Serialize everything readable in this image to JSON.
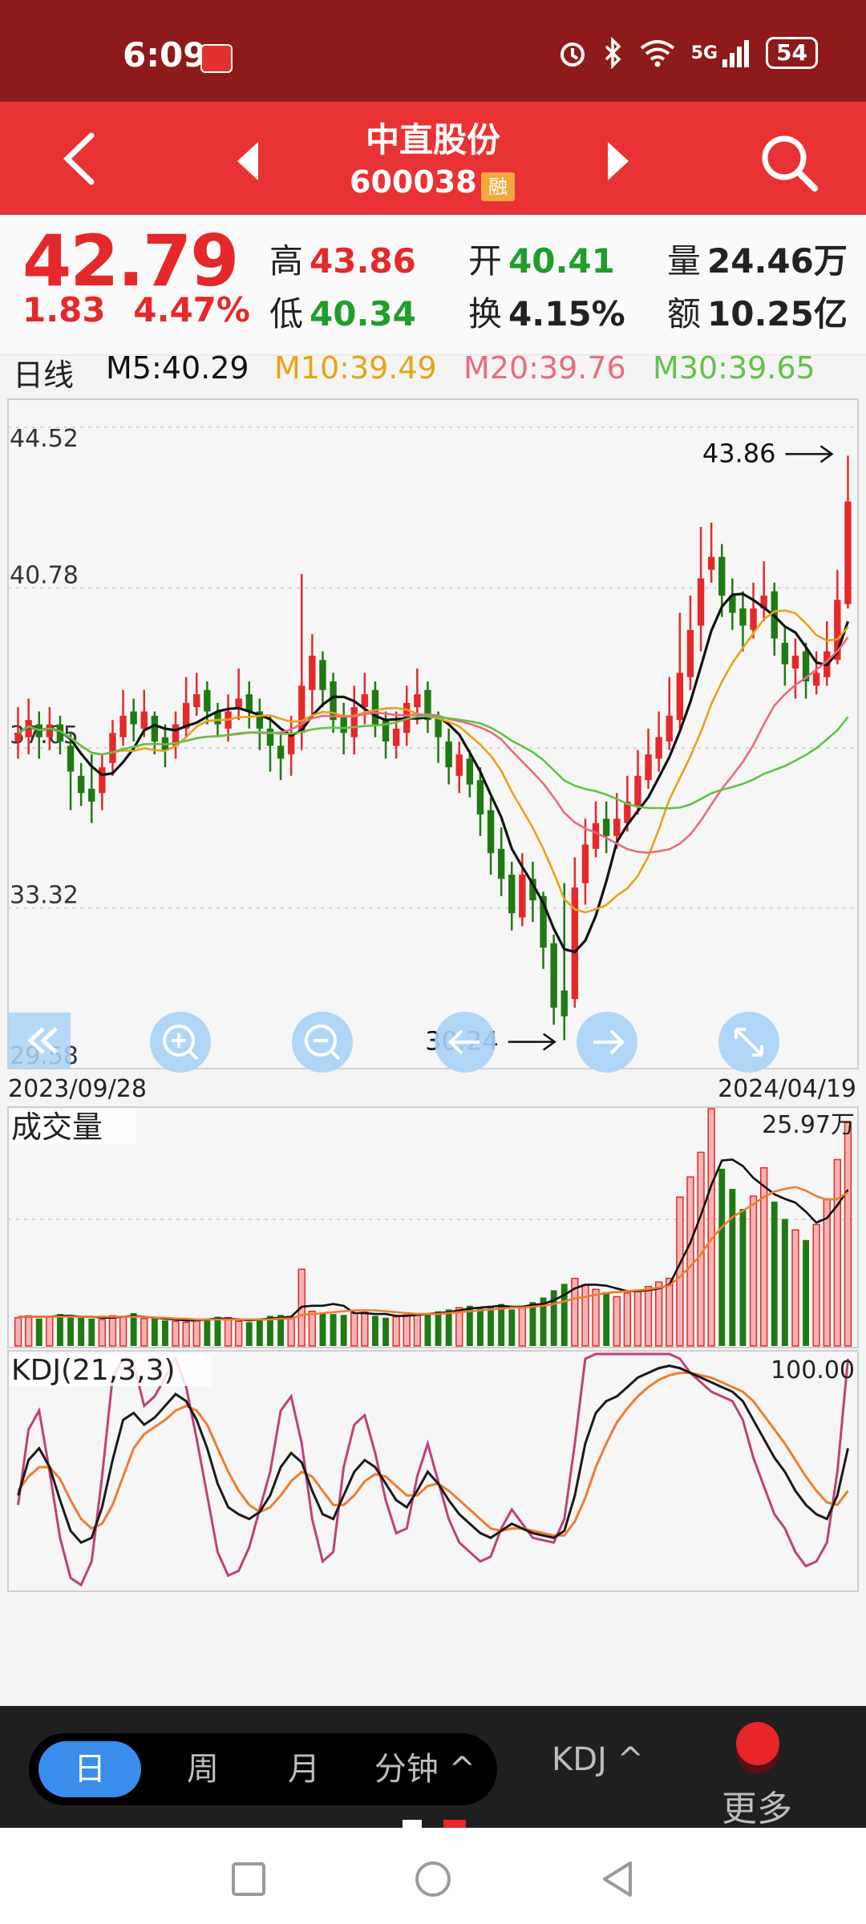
{
  "status_bar": {
    "time": "6:09",
    "battery": "54",
    "network": "5G"
  },
  "header": {
    "stock_name": "中直股份",
    "stock_code": "600038",
    "badge": "融"
  },
  "quote": {
    "price": "42.79",
    "change": "1.83",
    "change_pct": "4.47%",
    "high_label": "高",
    "high": "43.86",
    "low_label": "低",
    "low": "40.34",
    "open_label": "开",
    "open": "40.41",
    "turnover_label": "换",
    "turnover": "4.15%",
    "volume_label": "量",
    "volume": "24.46万",
    "amount_label": "额",
    "amount": "10.25亿"
  },
  "ma_bar": {
    "period": "日线",
    "ma5": "M5:40.29",
    "ma10": "M10:39.49",
    "ma20": "M20:39.76",
    "ma30": "M30:39.65"
  },
  "colors": {
    "up": "#e5292a",
    "down": "#1f7a12",
    "ma5": "#111111",
    "ma10": "#e8a317",
    "ma20": "#ec6a7e",
    "ma30": "#62c24a",
    "k": "#1a1a1a",
    "d": "#ef7d2e",
    "j": "#c0407a",
    "accent_blue": "#3a8dea"
  },
  "chart_data": [
    {
      "type": "candlestick",
      "y_ticks": [
        "44.52",
        "40.78",
        "37.05",
        "33.32",
        "29.58"
      ],
      "ylim": [
        29.58,
        44.52
      ],
      "date_start": "2023/09/28",
      "date_end": "2024/04/19",
      "max_label": "43.86",
      "min_label": "30.24",
      "close": [
        37.4,
        37.7,
        37.3,
        37.6,
        37.2,
        36.5,
        36.0,
        35.8,
        36.6,
        37.4,
        37.8,
        37.6,
        37.9,
        37.2,
        37.0,
        37.6,
        38.1,
        38.3,
        37.9,
        37.6,
        37.9,
        38.2,
        37.9,
        37.5,
        37.1,
        36.8,
        37.4,
        38.5,
        39.2,
        38.4,
        37.7,
        37.4,
        38.0,
        38.3,
        37.6,
        37.2,
        37.5,
        38.1,
        38.3,
        37.7,
        37.3,
        36.6,
        36.9,
        36.2,
        35.5,
        34.6,
        34.0,
        33.2,
        34.1,
        33.5,
        32.4,
        31.0,
        30.8,
        33.8,
        34.8,
        35.3,
        35.0,
        35.4,
        35.8,
        36.4,
        36.9,
        37.3,
        37.8,
        38.8,
        39.8,
        41.0,
        41.5,
        40.6,
        40.2,
        39.9,
        40.3,
        40.6,
        39.6,
        39.0,
        39.2,
        38.6,
        38.8,
        39.3,
        40.5,
        42.79
      ],
      "open": [
        37.2,
        37.3,
        37.6,
        37.3,
        37.6,
        37.1,
        36.4,
        36.1,
        36.0,
        36.7,
        37.3,
        37.9,
        37.5,
        37.8,
        37.3,
        37.1,
        37.5,
        38.0,
        38.4,
        37.9,
        37.5,
        38.0,
        38.3,
        37.9,
        37.5,
        37.1,
        36.9,
        37.4,
        38.4,
        39.1,
        38.6,
        37.8,
        37.3,
        38.0,
        38.4,
        37.7,
        37.1,
        37.4,
        38.0,
        38.4,
        37.8,
        37.2,
        36.4,
        36.8,
        36.3,
        35.6,
        34.7,
        34.1,
        33.1,
        34.0,
        33.6,
        32.5,
        31.4,
        31.2,
        33.9,
        34.7,
        35.4,
        35.0,
        35.3,
        35.7,
        36.3,
        36.8,
        37.2,
        37.7,
        38.7,
        39.9,
        41.2,
        41.5,
        40.6,
        40.3,
        39.8,
        40.3,
        40.7,
        39.5,
        38.9,
        39.3,
        38.5,
        38.7,
        39.1,
        40.4
      ],
      "high": [
        38.0,
        38.2,
        37.9,
        38.0,
        37.8,
        37.4,
        36.7,
        36.9,
        36.9,
        37.7,
        38.4,
        38.2,
        38.4,
        37.9,
        37.6,
        37.9,
        38.7,
        38.8,
        38.6,
        38.1,
        38.3,
        38.9,
        38.6,
        38.2,
        37.8,
        37.4,
        37.8,
        41.1,
        39.7,
        39.3,
        38.8,
        38.1,
        38.5,
        38.8,
        38.6,
        37.9,
        37.9,
        38.5,
        38.9,
        38.6,
        37.9,
        37.5,
        37.2,
        37.0,
        36.6,
        35.9,
        35.2,
        34.4,
        34.6,
        34.4,
        33.7,
        32.7,
        33.9,
        34.5,
        35.4,
        35.8,
        35.8,
        36.0,
        36.4,
        37.0,
        37.5,
        37.9,
        38.7,
        40.2,
        40.6,
        42.2,
        42.3,
        41.8,
        41.0,
        40.7,
        40.9,
        41.4,
        40.9,
        39.9,
        39.6,
        39.5,
        39.3,
        40.0,
        41.2,
        43.86
      ],
      "low": [
        36.8,
        36.9,
        36.8,
        37.0,
        36.9,
        35.6,
        35.7,
        35.3,
        35.6,
        36.4,
        37.1,
        37.2,
        37.3,
        36.9,
        36.6,
        36.8,
        37.3,
        37.8,
        37.6,
        37.3,
        37.2,
        37.7,
        37.5,
        37.0,
        36.5,
        36.3,
        36.4,
        37.0,
        37.8,
        38.0,
        37.4,
        36.9,
        36.9,
        37.6,
        37.3,
        36.8,
        36.8,
        37.1,
        37.6,
        37.4,
        36.7,
        36.2,
        36.0,
        35.9,
        35.0,
        34.1,
        33.6,
        32.8,
        32.9,
        33.0,
        31.9,
        30.6,
        30.24,
        31.0,
        33.4,
        34.5,
        34.6,
        34.7,
        35.1,
        35.5,
        36.1,
        36.5,
        37.0,
        37.5,
        38.4,
        39.3,
        40.9,
        40.1,
        39.8,
        39.3,
        39.6,
        40.0,
        39.2,
        38.5,
        38.2,
        38.2,
        38.3,
        38.5,
        39.0,
        40.3
      ]
    },
    {
      "type": "bar",
      "title": "成交量",
      "max_label": "25.97万",
      "values": [
        3.1,
        3.3,
        3.0,
        3.2,
        3.5,
        3.4,
        3.1,
        3.0,
        2.9,
        3.3,
        3.2,
        3.6,
        3.0,
        3.1,
        2.8,
        2.7,
        2.6,
        2.9,
        3.0,
        3.2,
        3.1,
        2.7,
        2.6,
        3.0,
        3.3,
        3.4,
        3.2,
        8.4,
        3.8,
        3.6,
        3.5,
        3.4,
        3.6,
        3.7,
        3.3,
        3.1,
        3.2,
        3.4,
        3.5,
        3.6,
        3.8,
        4.0,
        4.2,
        4.4,
        4.1,
        4.3,
        4.6,
        4.0,
        4.2,
        4.8,
        5.3,
        6.1,
        6.8,
        7.4,
        6.7,
        6.2,
        5.9,
        5.4,
        5.8,
        6.1,
        6.5,
        7.0,
        7.4,
        16.3,
        18.5,
        21.2,
        25.97,
        19.4,
        17.2,
        15.0,
        16.4,
        19.5,
        15.8,
        13.9,
        12.7,
        11.6,
        13.3,
        16.1,
        20.4,
        24.46
      ],
      "ma1": [
        3.2,
        3.2,
        3.2,
        3.2,
        3.3,
        3.3,
        3.2,
        3.2,
        3.1,
        3.1,
        3.2,
        3.3,
        3.2,
        3.1,
        3.0,
        2.9,
        2.8,
        2.8,
        2.9,
        3.0,
        3.0,
        2.9,
        2.8,
        2.9,
        3.0,
        3.1,
        3.2,
        4.3,
        4.4,
        4.4,
        4.6,
        4.4,
        3.6,
        3.6,
        3.5,
        3.5,
        3.3,
        3.3,
        3.4,
        3.5,
        3.6,
        3.7,
        3.9,
        4.1,
        4.2,
        4.3,
        4.4,
        4.3,
        4.3,
        4.5,
        4.6,
        5.0,
        5.6,
        6.3,
        6.7,
        6.7,
        6.6,
        6.3,
        6.0,
        6.0,
        6.1,
        6.3,
        6.7,
        9.0,
        11.3,
        14.3,
        17.6,
        20.3,
        20.4,
        19.7,
        18.4,
        17.5,
        16.6,
        16.1,
        15.7,
        14.7,
        13.5,
        14.0,
        15.4,
        17.1
      ],
      "ma2": [
        3.2,
        3.2,
        3.2,
        3.2,
        3.2,
        3.2,
        3.2,
        3.2,
        3.2,
        3.2,
        3.2,
        3.2,
        3.2,
        3.1,
        3.1,
        3.0,
        3.0,
        2.9,
        2.9,
        2.9,
        2.9,
        2.9,
        2.9,
        2.9,
        2.9,
        3.0,
        3.0,
        3.4,
        3.5,
        3.6,
        3.7,
        3.8,
        3.9,
        3.9,
        3.9,
        3.8,
        3.7,
        3.6,
        3.5,
        3.5,
        3.5,
        3.6,
        3.7,
        3.8,
        3.9,
        4.0,
        4.1,
        4.2,
        4.2,
        4.3,
        4.4,
        4.6,
        4.9,
        5.2,
        5.4,
        5.6,
        5.8,
        5.9,
        6.0,
        6.1,
        6.2,
        6.4,
        6.6,
        7.6,
        8.7,
        10.0,
        11.7,
        13.0,
        14.1,
        14.8,
        15.5,
        16.3,
        16.9,
        17.2,
        17.4,
        17.0,
        16.4,
        16.0,
        16.1,
        16.8
      ]
    },
    {
      "type": "line",
      "title": "KDJ(21,3,3)",
      "max_label": "100.00",
      "ylim": [
        0,
        100
      ],
      "series": [
        {
          "name": "K",
          "values": [
            40,
            55,
            60,
            52,
            38,
            25,
            20,
            22,
            35,
            55,
            72,
            75,
            70,
            73,
            78,
            83,
            80,
            72,
            60,
            45,
            35,
            32,
            30,
            33,
            40,
            52,
            58,
            54,
            42,
            32,
            30,
            40,
            50,
            55,
            52,
            45,
            38,
            35,
            42,
            50,
            45,
            38,
            32,
            28,
            24,
            22,
            25,
            28,
            26,
            24,
            23,
            22,
            25,
            40,
            62,
            75,
            80,
            82,
            86,
            90,
            92,
            94,
            95,
            94,
            92,
            90,
            88,
            86,
            84,
            80,
            72,
            64,
            56,
            50,
            42,
            36,
            32,
            30,
            40,
            60
          ]
        },
        {
          "name": "D",
          "values": [
            42,
            48,
            52,
            52,
            47,
            38,
            30,
            26,
            28,
            36,
            48,
            60,
            66,
            69,
            72,
            76,
            78,
            76,
            70,
            60,
            50,
            42,
            36,
            33,
            35,
            40,
            46,
            50,
            48,
            42,
            36,
            36,
            40,
            46,
            49,
            48,
            44,
            40,
            40,
            44,
            45,
            42,
            38,
            34,
            30,
            26,
            25,
            26,
            26,
            25,
            24,
            23,
            23,
            29,
            39,
            52,
            62,
            71,
            77,
            82,
            86,
            89,
            91,
            92,
            92,
            91,
            90,
            88,
            86,
            84,
            80,
            74,
            68,
            62,
            55,
            48,
            42,
            37,
            36,
            42
          ]
        },
        {
          "name": "J",
          "values": [
            36,
            68,
            76,
            50,
            22,
            5,
            2,
            12,
            48,
            90,
            98,
            96,
            78,
            82,
            90,
            98,
            86,
            64,
            40,
            16,
            6,
            8,
            18,
            34,
            50,
            76,
            82,
            62,
            30,
            12,
            16,
            52,
            70,
            74,
            58,
            38,
            24,
            26,
            48,
            62,
            46,
            30,
            20,
            16,
            12,
            14,
            26,
            34,
            28,
            22,
            21,
            20,
            30,
            62,
            98,
            100,
            100,
            100,
            100,
            100,
            100,
            100,
            100,
            98,
            92,
            88,
            84,
            82,
            80,
            72,
            56,
            44,
            32,
            26,
            16,
            10,
            12,
            20,
            50,
            98
          ]
        }
      ]
    }
  ],
  "period_tabs": [
    "日",
    "周",
    "月",
    "分钟 ^"
  ],
  "indicator_button": "KDJ ^",
  "more_label": "更多"
}
